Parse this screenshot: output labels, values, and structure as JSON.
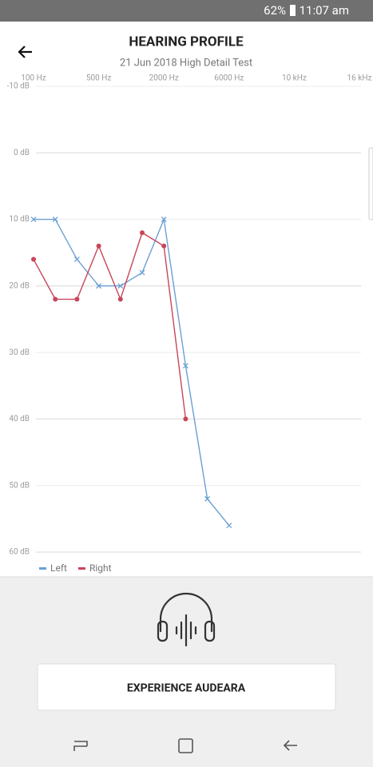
{
  "status_bar": {
    "battery": "62%",
    "time": "11:07 am"
  },
  "header": {
    "title": "HEARING PROFILE",
    "subtitle": "21 Jun 2018 High Detail Test"
  },
  "chart_data": {
    "type": "line",
    "categories": [
      "100 Hz",
      null,
      null,
      "500 Hz",
      null,
      null,
      "2000 Hz",
      null,
      null,
      "6000 Hz",
      null,
      null,
      "10 kHz",
      null,
      null,
      "16 kHz"
    ],
    "series": [
      {
        "name": "Left",
        "color": "#6a9fd4",
        "marker": "x",
        "values": [
          10,
          10,
          16,
          20,
          20,
          18,
          10,
          32,
          52,
          56,
          null,
          null,
          null,
          null,
          null,
          null
        ]
      },
      {
        "name": "Right",
        "color": "#c8455a",
        "marker": "dot",
        "values": [
          16,
          22,
          22,
          14,
          22,
          12,
          14,
          40,
          null,
          null,
          null,
          null,
          null,
          null,
          null,
          null
        ]
      }
    ],
    "ylim": [
      -10,
      60
    ],
    "y_inverted": true,
    "yticks": [
      {
        "value": -10,
        "label": "-10 dB"
      },
      {
        "value": 0,
        "label": "0 dB"
      },
      {
        "value": 10,
        "label": "10 dB"
      },
      {
        "value": 20,
        "label": "20 dB"
      },
      {
        "value": 30,
        "label": "30 dB"
      },
      {
        "value": 40,
        "label": "40 dB"
      },
      {
        "value": 50,
        "label": "50 dB"
      },
      {
        "value": 60,
        "label": "60 dB"
      }
    ],
    "grid": true,
    "legend": "bottom-left"
  },
  "button": {
    "label": "EXPERIENCE AUDEARA"
  }
}
